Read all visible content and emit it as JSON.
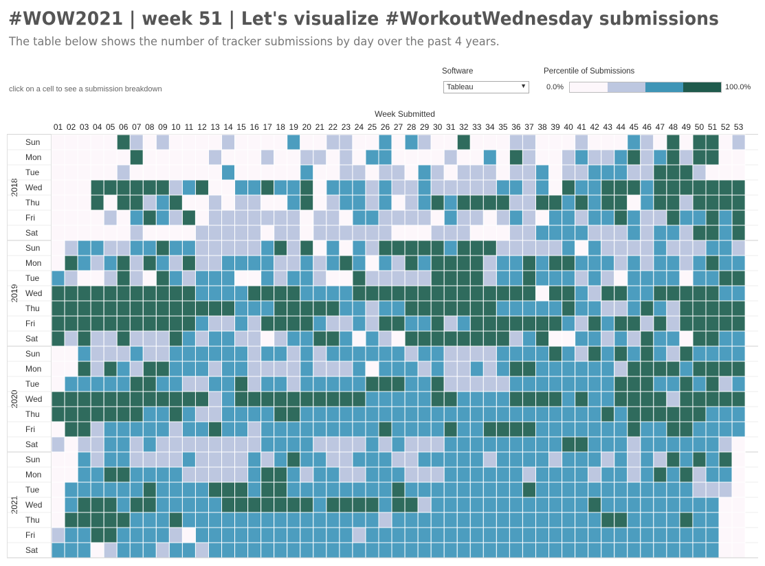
{
  "header": {
    "title": "#WOW2021 | week 51 | Let's visualize #WorkoutWednesday submissions",
    "subtitle": "The table below shows the number of tracker submissions by day over the past 4 years.",
    "hint": "click on a cell to see a submission breakdown"
  },
  "controls": {
    "software_label": "Software",
    "software_value": "Tableau",
    "legend_label": "Percentile of Submissions",
    "legend_min": "0.0%",
    "legend_max": "100.0%",
    "legend_colors": [
      "#fdf7fb",
      "#bdc7e0",
      "#3f95b6",
      "#2e6b5e"
    ]
  },
  "chart_data": {
    "type": "heatmap",
    "x_title": "Week Submitted",
    "weeks": [
      "01",
      "02",
      "03",
      "04",
      "05",
      "06",
      "07",
      "08",
      "09",
      "10",
      "11",
      "12",
      "13",
      "14",
      "15",
      "16",
      "17",
      "18",
      "19",
      "20",
      "21",
      "22",
      "23",
      "24",
      "25",
      "26",
      "27",
      "28",
      "29",
      "30",
      "31",
      "32",
      "33",
      "34",
      "35",
      "36",
      "37",
      "38",
      "39",
      "40",
      "41",
      "42",
      "43",
      "44",
      "45",
      "46",
      "47",
      "48",
      "49",
      "50",
      "51",
      "52",
      "53"
    ],
    "years": [
      "2018",
      "2019",
      "2020",
      "2021"
    ],
    "days": [
      "Sun",
      "Mon",
      "Tue",
      "Wed",
      "Thu",
      "Fri",
      "Sat"
    ],
    "value_scale": "percentile quartile level 0-3 (0 = 0-25%, 3 = 75-100%)",
    "values": {
      "2018": [
        "00000310100001000020011002021003000110001000210303301",
        "00000030000010001001101022000010020310012112312313300",
        "00000100000002000002001101102101110112011222113331000",
        "00033333312300223223022212112111112212032233323333333",
        "00030331230010110023012212012323333113323233023313333",
        "00001023213011111110110221111021101210221223211322323",
        "00000010000111110110111111000111000112222111212213323"
      ],
      "2019": [
        "01221122322111112313020213333323331111120211112111221",
        "03212313213112222112123202132333312232332221212212322",
        "21001310321222002122100311111333312232221210222202233",
        "33333333333222233332222333333333333330332133223333322",
        "33333333333333222333332212233333332222232211232133333",
        "33333333333211213333211213322312333333321323313133333",
        "31311311132122110122332021033333333123002212132203322"
      ],
      "2020": [
        "00211121122222212212122222212211112222321323232132222",
        "00313213322212211112111202221211212332222221333323333",
        "02222233221122312212222233322311111222222223332232312",
        "33333333333312333333333322222332222333323223333133333",
        "33333332232112222332222222222222222222222232333333222",
        "03312222212232212222222223222232233332222222322332222",
        "10112212111111112222111121211122222222233222122222210"
      ],
      "2021": [
        "00212211112111121232211222112222212222122212121323230",
        "00223322221111123321221122211122222212222122123231220",
        "02222223222233323322222222322222222232222222222221110",
        "02333233222223333333233332331222222222222322222222200",
        "03333322232222222222222221222222222222222233222232200",
        "12233222210222222222222122222222222222222222222222200",
        "22201222122122222222222222222222222222222222222222200"
      ]
    }
  }
}
